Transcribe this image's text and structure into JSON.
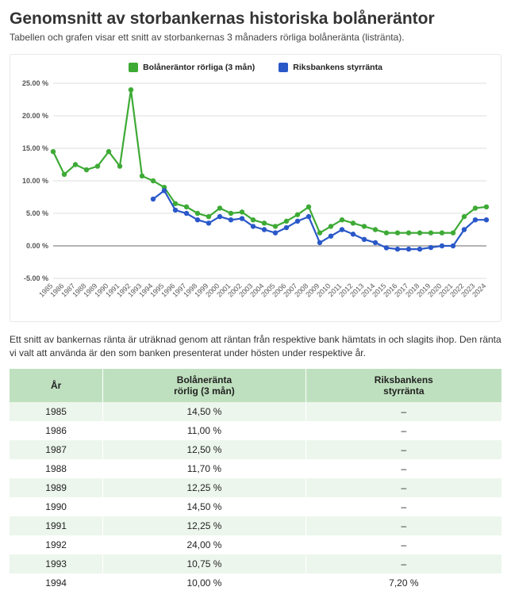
{
  "heading": "Genomsnitt av storbankernas historiska bolåneräntor",
  "subtitle": "Tabellen och grafen visar ett snitt av storbankernas 3 månaders rörliga bolåneränta (listränta).",
  "note": "Ett snitt av bankernas ränta är uträknad genom att räntan från respektive bank hämtats in och slagits ihop. Den ränta vi valt att använda är den som banken presenterat under hösten under respektive år.",
  "chart": {
    "type": "line",
    "legend": [
      {
        "label": "Bolåneräntor rörliga (3 mån)",
        "color": "#3eaa36"
      },
      {
        "label": "Riksbankens styrränta",
        "color": "#2a58c9"
      }
    ],
    "x_labels": [
      "1985",
      "1986",
      "1987",
      "1988",
      "1989",
      "1990",
      "1991",
      "1992",
      "1993",
      "1994",
      "1995",
      "1996",
      "1997",
      "1998",
      "1999",
      "2000",
      "2001",
      "2002",
      "2003",
      "2004",
      "2005",
      "2006",
      "2007",
      "2008",
      "2009",
      "2010",
      "2011",
      "2012",
      "2013",
      "2014",
      "2015",
      "2016",
      "2017",
      "2018",
      "2019",
      "2020",
      "2021",
      "2022",
      "2023",
      "2024"
    ],
    "series": [
      {
        "name": "bolan",
        "color": "#3eaa36",
        "values": [
          14.5,
          11.0,
          12.5,
          11.7,
          12.25,
          14.5,
          12.25,
          24.0,
          10.75,
          10.0,
          9.0,
          6.5,
          6.0,
          5.0,
          4.5,
          5.8,
          5.0,
          5.2,
          4.0,
          3.5,
          3.0,
          3.8,
          4.8,
          6.0,
          2.0,
          3.0,
          4.0,
          3.5,
          3.0,
          2.5,
          2.0,
          2.0,
          2.0,
          2.0,
          2.0,
          2.0,
          2.0,
          4.5,
          5.8,
          6.0
        ]
      },
      {
        "name": "styr",
        "color": "#2a58c9",
        "values": [
          null,
          null,
          null,
          null,
          null,
          null,
          null,
          null,
          null,
          7.2,
          8.5,
          5.5,
          5.0,
          4.0,
          3.5,
          4.5,
          4.0,
          4.2,
          3.0,
          2.5,
          2.0,
          2.8,
          3.8,
          4.5,
          0.5,
          1.5,
          2.5,
          1.8,
          1.0,
          0.5,
          -0.3,
          -0.5,
          -0.5,
          -0.5,
          -0.25,
          0.0,
          0.0,
          2.5,
          4.0,
          4.0
        ]
      }
    ],
    "ylim": [
      -5,
      25
    ],
    "yticks": [
      -5,
      0,
      5,
      10,
      15,
      20,
      25
    ],
    "ytick_labels": [
      "-5.00 %",
      "0.00 %",
      "5.00 %",
      "10.00 %",
      "15.00 %",
      "20.00 %",
      "25.00 %"
    ],
    "grid_color": "#dddddd",
    "axis_color": "#888888",
    "plot_bg": "#ffffff",
    "marker_radius": 3.2,
    "line_width": 2.2,
    "axis_font_size": 9,
    "x_label_rotate": -45
  },
  "table": {
    "columns": [
      "År",
      "Bolåneränta\nrörlig (3 mån)",
      "Riksbankens\nstyrränta"
    ],
    "rows": [
      [
        "1985",
        "14,50 %",
        "–"
      ],
      [
        "1986",
        "11,00 %",
        "–"
      ],
      [
        "1987",
        "12,50 %",
        "–"
      ],
      [
        "1988",
        "11,70 %",
        "–"
      ],
      [
        "1989",
        "12,25 %",
        "–"
      ],
      [
        "1990",
        "14,50 %",
        "–"
      ],
      [
        "1991",
        "12,25 %",
        "–"
      ],
      [
        "1992",
        "24,00 %",
        "–"
      ],
      [
        "1993",
        "10,75 %",
        "–"
      ],
      [
        "1994",
        "10,00 %",
        "7,20 %"
      ]
    ],
    "header_bg": "#bfe0bf",
    "row_odd_bg": "#edf6ed",
    "row_even_bg": "#ffffff"
  }
}
